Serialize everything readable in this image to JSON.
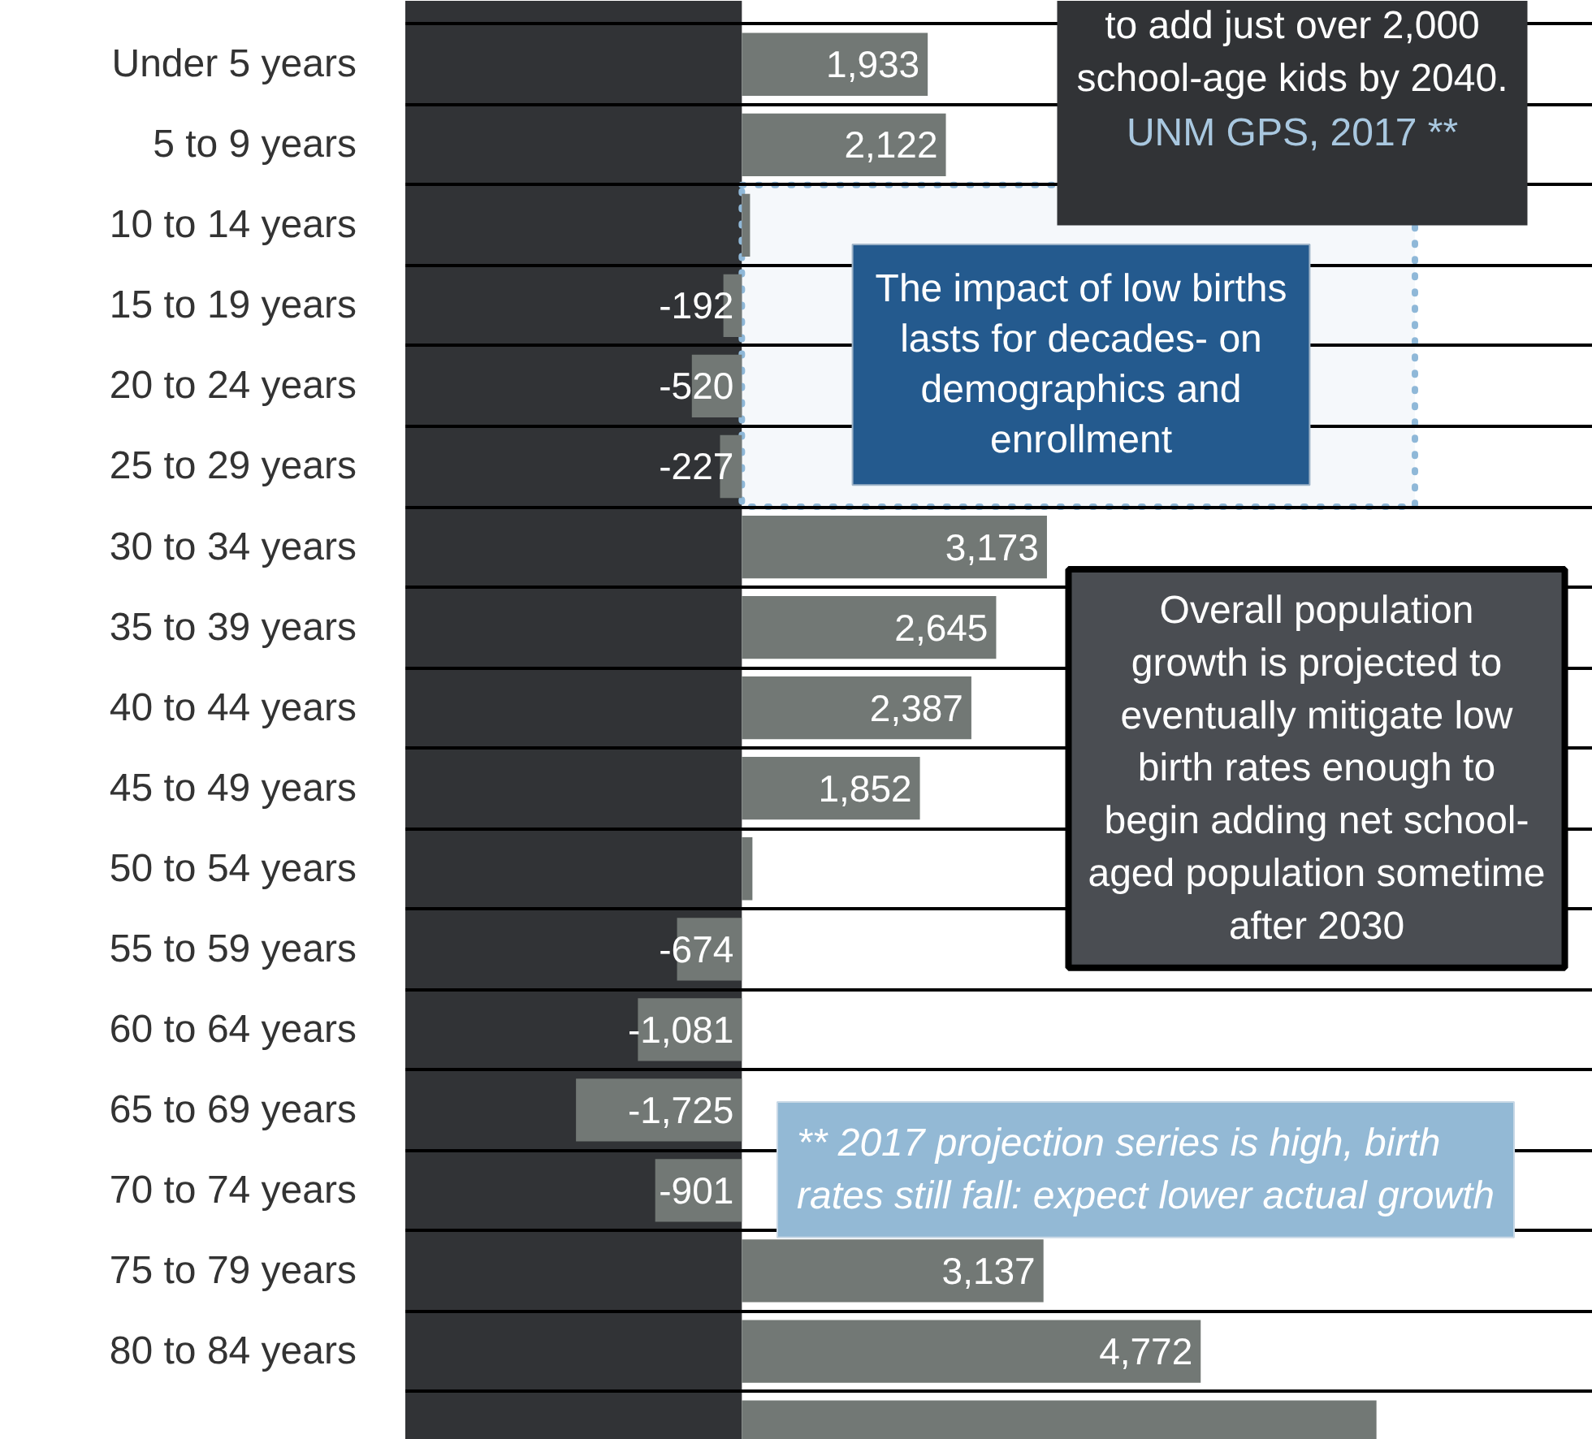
{
  "chart_data": {
    "type": "bar",
    "orientation": "horizontal",
    "categories": [
      "Under 5 years",
      "5 to 9 years",
      "10 to 14 years",
      "15 to 19 years",
      "20 to 24 years",
      "25 to 29 years",
      "30 to 34 years",
      "35 to 39 years",
      "40 to 44 years",
      "45 to 49 years",
      "50 to 54 years",
      "55 to 59 years",
      "60 to 64 years",
      "65 to 69 years",
      "70 to 74 years",
      "75 to 79 years",
      "80 to 84 years",
      null
    ],
    "values": [
      1933,
      2122,
      85,
      -192,
      -520,
      -227,
      3173,
      2645,
      2387,
      1852,
      110,
      -674,
      -1081,
      -1725,
      -901,
      3137,
      4772,
      6600
    ],
    "value_labels": [
      "1,933",
      "2,122",
      null,
      "-192",
      "-520",
      "-227",
      "3,173",
      "2,645",
      "2,387",
      "1,852",
      null,
      "-674",
      "-1,081",
      "-1,725",
      "-901",
      "3,137",
      "4,772",
      null
    ],
    "color": "#727875",
    "xlim": [
      -3500,
      8850
    ],
    "tick_labels": "y",
    "grid": "y",
    "bands": [
      {
        "axis": "x",
        "from": -3500,
        "to": 0,
        "color": "#313336"
      },
      {
        "axis": "y",
        "from": "10 to 14 years",
        "to": "25 to 29 years",
        "color": "#8fb8d8",
        "label": "The impact of low births lasts for decades- on demographics and enrollment"
      }
    ],
    "annotations": [
      "to add just over 2,000 school-age kids by 2040.",
      "UNM GPS, 2017 **",
      "Overall population growth is projected to eventually mitigate low birth rates enough to begin adding net school-aged population sometime after 2030",
      "** 2017 projection series is high, birth rates still fall: expect lower actual growth"
    ]
  }
}
